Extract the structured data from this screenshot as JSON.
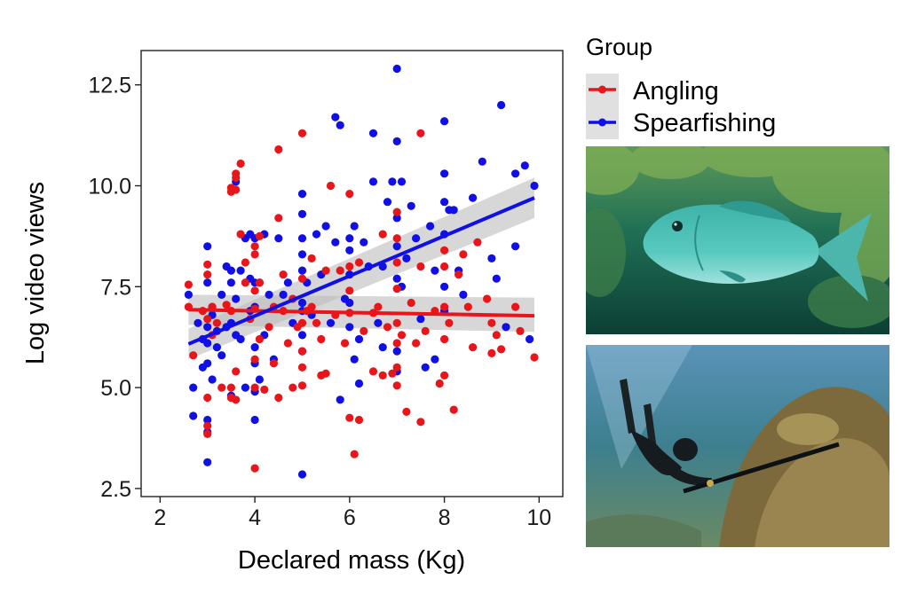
{
  "chart_data": {
    "type": "scatter",
    "xlabel": "Declared mass (Kg)",
    "ylabel": "Log video views",
    "xlim": [
      1.6,
      10.5
    ],
    "ylim": [
      2.3,
      13.35
    ],
    "xticks": [
      "2",
      "4",
      "6",
      "8",
      "10"
    ],
    "yticks": [
      "2.5",
      "5.0",
      "7.5",
      "10.0",
      "12.5"
    ],
    "grid": false,
    "legend": {
      "title": "Group",
      "placement": "right",
      "entries": [
        "Angling",
        "Spearfishing"
      ]
    },
    "series": [
      {
        "name": "Angling",
        "color": "#e8151b",
        "trend": {
          "x": [
            2.6,
            9.9
          ],
          "y": [
            6.93,
            6.78
          ],
          "ci_low": [
            6.55,
            6.38
          ],
          "ci_high": [
            7.3,
            7.23
          ]
        },
        "points": [
          [
            2.6,
            7.55
          ],
          [
            2.6,
            7.0
          ],
          [
            2.7,
            5.8
          ],
          [
            2.9,
            6.9
          ],
          [
            3.0,
            8.05
          ],
          [
            3.0,
            7.8
          ],
          [
            3.0,
            6.7
          ],
          [
            3.0,
            4.75
          ],
          [
            3.0,
            4.05
          ],
          [
            3.0,
            3.85
          ],
          [
            3.1,
            6.3
          ],
          [
            3.1,
            7.0
          ],
          [
            3.2,
            6.6
          ],
          [
            3.3,
            5.0
          ],
          [
            3.4,
            7.05
          ],
          [
            3.5,
            9.95
          ],
          [
            3.5,
            9.85
          ],
          [
            3.5,
            6.9
          ],
          [
            3.5,
            5.0
          ],
          [
            3.5,
            4.75
          ],
          [
            3.6,
            10.3
          ],
          [
            3.6,
            10.2
          ],
          [
            3.6,
            4.7
          ],
          [
            3.6,
            9.9
          ],
          [
            3.6,
            5.4
          ],
          [
            3.7,
            10.55
          ],
          [
            3.7,
            8.8
          ],
          [
            3.8,
            8.1
          ],
          [
            3.8,
            7.6
          ],
          [
            3.9,
            6.7
          ],
          [
            4.0,
            8.5
          ],
          [
            4.0,
            8.3
          ],
          [
            4.0,
            7.4
          ],
          [
            4.0,
            6.95
          ],
          [
            4.0,
            5.7
          ],
          [
            4.0,
            5.0
          ],
          [
            4.0,
            3.0
          ],
          [
            4.1,
            8.75
          ],
          [
            4.1,
            7.6
          ],
          [
            4.1,
            6.2
          ],
          [
            4.2,
            4.95
          ],
          [
            4.3,
            6.5
          ],
          [
            4.4,
            7.0
          ],
          [
            4.4,
            5.6
          ],
          [
            4.5,
            10.9
          ],
          [
            4.5,
            9.2
          ],
          [
            4.5,
            4.75
          ],
          [
            4.6,
            7.8
          ],
          [
            4.6,
            6.9
          ],
          [
            4.7,
            6.1
          ],
          [
            4.8,
            7.2
          ],
          [
            4.8,
            5.0
          ],
          [
            4.9,
            6.5
          ],
          [
            5.0,
            11.3
          ],
          [
            5.0,
            7.7
          ],
          [
            5.0,
            6.6
          ],
          [
            5.0,
            5.9
          ],
          [
            5.0,
            5.5
          ],
          [
            5.0,
            5.05
          ],
          [
            5.1,
            6.9
          ],
          [
            5.2,
            8.2
          ],
          [
            5.2,
            7.0
          ],
          [
            5.3,
            6.6
          ],
          [
            5.4,
            5.3
          ],
          [
            5.4,
            6.2
          ],
          [
            5.5,
            7.9
          ],
          [
            5.5,
            5.35
          ],
          [
            5.6,
            10.0
          ],
          [
            5.7,
            6.8
          ],
          [
            5.8,
            7.9
          ],
          [
            5.9,
            6.1
          ],
          [
            6.0,
            9.8
          ],
          [
            6.0,
            8.0
          ],
          [
            6.0,
            7.4
          ],
          [
            6.0,
            6.85
          ],
          [
            6.0,
            4.25
          ],
          [
            6.1,
            3.35
          ],
          [
            6.2,
            8.1
          ],
          [
            6.2,
            4.2
          ],
          [
            6.3,
            6.4
          ],
          [
            6.5,
            6.85
          ],
          [
            6.5,
            5.4
          ],
          [
            6.6,
            7.0
          ],
          [
            6.7,
            8.8
          ],
          [
            6.7,
            5.3
          ],
          [
            6.8,
            6.5
          ],
          [
            6.9,
            5.35
          ],
          [
            7.0,
            9.35
          ],
          [
            7.0,
            8.7
          ],
          [
            7.0,
            8.1
          ],
          [
            7.0,
            7.45
          ],
          [
            7.0,
            6.6
          ],
          [
            7.0,
            6.1
          ],
          [
            7.0,
            5.5
          ],
          [
            7.0,
            5.05
          ],
          [
            7.1,
            6.3
          ],
          [
            7.2,
            4.4
          ],
          [
            7.3,
            7.1
          ],
          [
            7.4,
            6.1
          ],
          [
            7.5,
            11.3
          ],
          [
            7.5,
            8.0
          ],
          [
            7.5,
            4.15
          ],
          [
            7.6,
            6.4
          ],
          [
            7.8,
            6.9
          ],
          [
            7.9,
            5.1
          ],
          [
            8.0,
            8.4
          ],
          [
            8.0,
            8.0
          ],
          [
            8.0,
            7.0
          ],
          [
            8.0,
            6.2
          ],
          [
            8.0,
            5.3
          ],
          [
            8.1,
            6.6
          ],
          [
            8.2,
            4.45
          ],
          [
            8.3,
            7.8
          ],
          [
            8.4,
            8.3
          ],
          [
            8.5,
            7.0
          ],
          [
            8.6,
            6.0
          ],
          [
            8.7,
            8.6
          ],
          [
            8.9,
            7.2
          ],
          [
            9.0,
            6.6
          ],
          [
            9.0,
            5.85
          ],
          [
            9.1,
            6.3
          ],
          [
            9.2,
            5.95
          ],
          [
            9.5,
            7.0
          ],
          [
            9.6,
            6.4
          ],
          [
            9.9,
            5.75
          ]
        ]
      },
      {
        "name": "Spearfishing",
        "color": "#0f0fe6",
        "trend": {
          "x": [
            2.6,
            9.9
          ],
          "y": [
            6.08,
            9.7
          ],
          "ci_low": [
            5.7,
            9.2
          ],
          "ci_high": [
            6.46,
            10.2
          ]
        },
        "points": [
          [
            2.6,
            7.3
          ],
          [
            2.7,
            4.3
          ],
          [
            2.7,
            5.0
          ],
          [
            2.8,
            6.6
          ],
          [
            2.9,
            6.2
          ],
          [
            2.9,
            5.5
          ],
          [
            3.0,
            8.5
          ],
          [
            3.0,
            7.6
          ],
          [
            3.0,
            6.5
          ],
          [
            3.0,
            6.1
          ],
          [
            3.0,
            5.6
          ],
          [
            3.0,
            4.2
          ],
          [
            3.0,
            3.9
          ],
          [
            3.0,
            3.15
          ],
          [
            3.1,
            7.0
          ],
          [
            3.1,
            6.8
          ],
          [
            3.1,
            5.2
          ],
          [
            3.2,
            6.4
          ],
          [
            3.2,
            6.0
          ],
          [
            3.3,
            7.3
          ],
          [
            3.3,
            5.8
          ],
          [
            3.4,
            8.0
          ],
          [
            3.4,
            6.5
          ],
          [
            3.5,
            7.9
          ],
          [
            3.5,
            7.6
          ],
          [
            3.5,
            6.6
          ],
          [
            3.5,
            4.8
          ],
          [
            3.6,
            10.1
          ],
          [
            3.6,
            7.2
          ],
          [
            3.6,
            6.3
          ],
          [
            3.7,
            7.9
          ],
          [
            3.7,
            6.2
          ],
          [
            3.8,
            8.7
          ],
          [
            3.8,
            5.0
          ],
          [
            3.9,
            8.8
          ],
          [
            3.9,
            7.7
          ],
          [
            3.9,
            6.9
          ],
          [
            4.0,
            8.7
          ],
          [
            4.0,
            7.6
          ],
          [
            4.0,
            7.0
          ],
          [
            4.0,
            6.0
          ],
          [
            4.0,
            5.6
          ],
          [
            4.0,
            4.9
          ],
          [
            4.0,
            4.2
          ],
          [
            4.1,
            7.6
          ],
          [
            4.1,
            5.2
          ],
          [
            4.2,
            8.8
          ],
          [
            4.2,
            6.3
          ],
          [
            4.3,
            7.3
          ],
          [
            4.4,
            5.7
          ],
          [
            4.5,
            8.7
          ],
          [
            4.6,
            7.3
          ],
          [
            4.7,
            7.6
          ],
          [
            4.8,
            6.6
          ],
          [
            5.0,
            9.8
          ],
          [
            5.0,
            9.3
          ],
          [
            5.0,
            8.7
          ],
          [
            5.0,
            8.3
          ],
          [
            5.0,
            7.9
          ],
          [
            5.0,
            7.1
          ],
          [
            5.0,
            6.9
          ],
          [
            5.0,
            6.3
          ],
          [
            5.0,
            5.9
          ],
          [
            5.0,
            2.85
          ],
          [
            5.1,
            7.6
          ],
          [
            5.2,
            6.8
          ],
          [
            5.3,
            8.8
          ],
          [
            5.4,
            7.8
          ],
          [
            5.5,
            9.0
          ],
          [
            5.6,
            6.6
          ],
          [
            5.7,
            11.7
          ],
          [
            5.7,
            8.6
          ],
          [
            5.8,
            11.5
          ],
          [
            5.8,
            4.7
          ],
          [
            5.9,
            7.2
          ],
          [
            6.0,
            8.7
          ],
          [
            6.0,
            8.4
          ],
          [
            6.0,
            7.8
          ],
          [
            6.0,
            7.1
          ],
          [
            6.0,
            6.5
          ],
          [
            6.1,
            9.0
          ],
          [
            6.1,
            5.7
          ],
          [
            6.2,
            5.1
          ],
          [
            6.2,
            6.2
          ],
          [
            6.3,
            8.6
          ],
          [
            6.4,
            8.0
          ],
          [
            6.5,
            11.3
          ],
          [
            6.5,
            10.1
          ],
          [
            6.6,
            6.6
          ],
          [
            6.7,
            8.0
          ],
          [
            6.7,
            6.0
          ],
          [
            6.8,
            9.6
          ],
          [
            6.9,
            10.1
          ],
          [
            7.0,
            12.9
          ],
          [
            7.0,
            11.1
          ],
          [
            7.0,
            9.2
          ],
          [
            7.0,
            8.5
          ],
          [
            7.0,
            7.7
          ],
          [
            7.0,
            5.9
          ],
          [
            7.0,
            5.4
          ],
          [
            7.1,
            10.1
          ],
          [
            7.1,
            7.5
          ],
          [
            7.2,
            8.2
          ],
          [
            7.3,
            9.5
          ],
          [
            7.4,
            8.7
          ],
          [
            7.5,
            6.7
          ],
          [
            7.6,
            5.5
          ],
          [
            7.7,
            9.0
          ],
          [
            7.8,
            7.9
          ],
          [
            7.8,
            5.7
          ],
          [
            8.0,
            11.6
          ],
          [
            8.0,
            10.3
          ],
          [
            8.0,
            9.6
          ],
          [
            8.0,
            8.8
          ],
          [
            8.0,
            7.5
          ],
          [
            8.0,
            6.9
          ],
          [
            8.1,
            9.4
          ],
          [
            8.2,
            9.4
          ],
          [
            8.3,
            7.9
          ],
          [
            8.4,
            7.3
          ],
          [
            8.6,
            9.7
          ],
          [
            8.8,
            10.6
          ],
          [
            9.0,
            8.2
          ],
          [
            9.1,
            7.7
          ],
          [
            9.2,
            12.0
          ],
          [
            9.3,
            6.5
          ],
          [
            9.5,
            10.3
          ],
          [
            9.5,
            8.5
          ],
          [
            9.7,
            10.5
          ],
          [
            9.8,
            6.2
          ],
          [
            9.9,
            10.0
          ]
        ]
      }
    ]
  }
}
